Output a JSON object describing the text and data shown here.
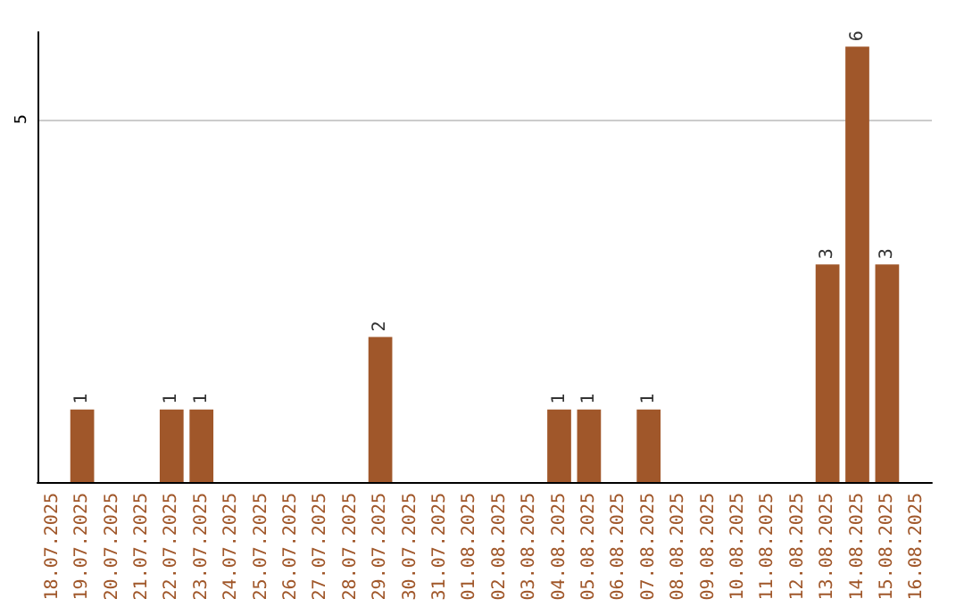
{
  "chart_data": {
    "type": "bar",
    "categories": [
      "18.07.2025",
      "19.07.2025",
      "20.07.2025",
      "21.07.2025",
      "22.07.2025",
      "23.07.2025",
      "24.07.2025",
      "25.07.2025",
      "26.07.2025",
      "27.07.2025",
      "28.07.2025",
      "29.07.2025",
      "30.07.2025",
      "31.07.2025",
      "01.08.2025",
      "02.08.2025",
      "03.08.2025",
      "04.08.2025",
      "05.08.2025",
      "06.08.2025",
      "07.08.2025",
      "08.08.2025",
      "09.08.2025",
      "10.08.2025",
      "11.08.2025",
      "12.08.2025",
      "13.08.2025",
      "14.08.2025",
      "15.08.2025",
      "16.08.2025"
    ],
    "values": [
      0,
      1,
      0,
      0,
      1,
      1,
      0,
      0,
      0,
      0,
      0,
      2,
      0,
      0,
      0,
      0,
      0,
      1,
      1,
      0,
      1,
      0,
      0,
      0,
      0,
      0,
      3,
      6,
      3,
      0
    ],
    "value_labels": [
      null,
      "1",
      null,
      null,
      "1",
      "1",
      null,
      null,
      null,
      null,
      null,
      "2",
      null,
      null,
      null,
      null,
      null,
      "1",
      "1",
      null,
      "1",
      null,
      null,
      null,
      null,
      null,
      "3",
      "6",
      "3",
      null
    ],
    "color": "#a0572a",
    "ylim": [
      0,
      6.2
    ],
    "yticks": [
      5
    ],
    "grid": "y"
  }
}
